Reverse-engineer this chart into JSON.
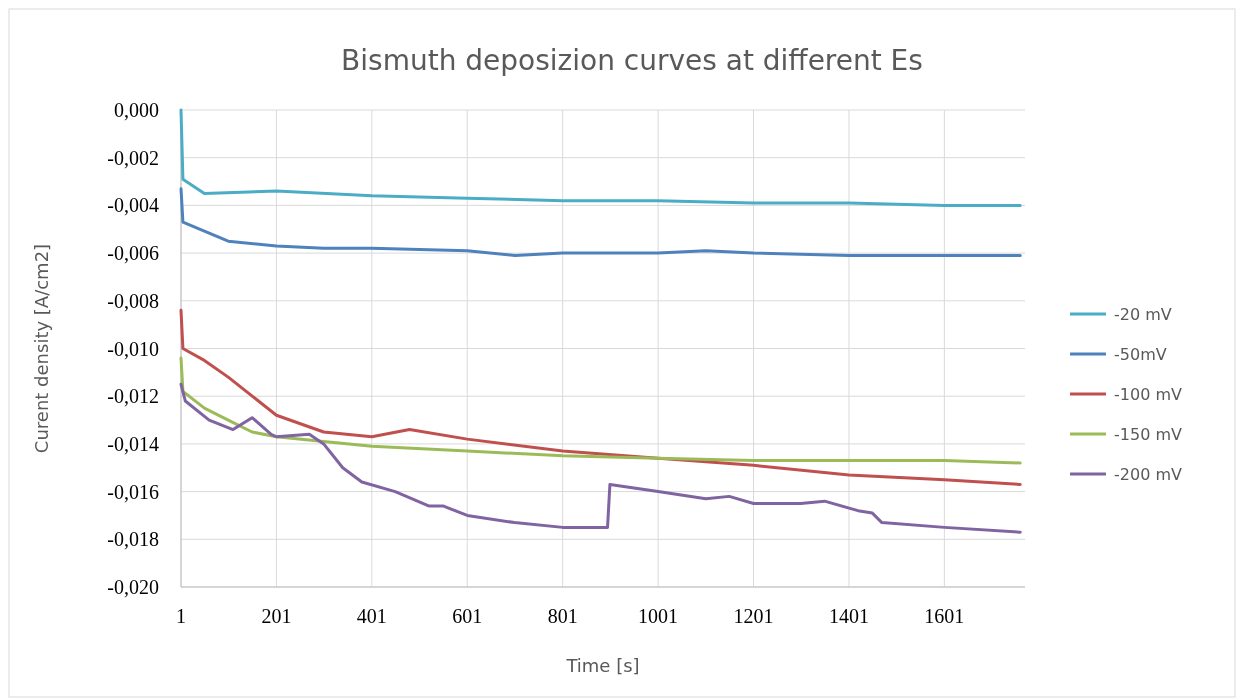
{
  "chart_data": {
    "type": "line",
    "title": "Bismuth deposizion curves at different Es",
    "xlabel": "Time [s]",
    "ylabel": "Curent density [A/cm2]",
    "xlim": [
      1,
      1770
    ],
    "xticks": [
      1,
      201,
      401,
      601,
      801,
      1001,
      1201,
      1401,
      1601
    ],
    "ylim": [
      -0.02,
      0
    ],
    "yticks": [
      {
        "value": 0,
        "label": "0,000"
      },
      {
        "value": -0.002,
        "label": "-0,002"
      },
      {
        "value": -0.004,
        "label": "-0,004"
      },
      {
        "value": -0.006,
        "label": "-0,006"
      },
      {
        "value": -0.008,
        "label": "-0,008"
      },
      {
        "value": -0.01,
        "label": "-0,010"
      },
      {
        "value": -0.012,
        "label": "-0,012"
      },
      {
        "value": -0.014,
        "label": "-0,014"
      },
      {
        "value": -0.016,
        "label": "-0,016"
      },
      {
        "value": -0.018,
        "label": "-0,018"
      },
      {
        "value": -0.02,
        "label": "-0,020"
      }
    ],
    "grid": true,
    "legend": "right",
    "line_style": "solid",
    "marker": "none",
    "series": [
      {
        "name": "-20 mV",
        "color": "#4bacc6",
        "x": [
          1,
          5,
          50,
          201,
          401,
          601,
          801,
          1001,
          1201,
          1401,
          1601,
          1760
        ],
        "values": [
          0,
          -0.0029,
          -0.0035,
          -0.0034,
          -0.0036,
          -0.0037,
          -0.0038,
          -0.0038,
          -0.0039,
          -0.0039,
          -0.004,
          -0.004
        ]
      },
      {
        "name": "-50mV",
        "color": "#4f81bd",
        "x": [
          1,
          5,
          100,
          201,
          300,
          401,
          601,
          701,
          801,
          1001,
          1101,
          1201,
          1401,
          1760
        ],
        "values": [
          -0.0033,
          -0.0047,
          -0.0055,
          -0.0057,
          -0.0058,
          -0.0058,
          -0.0059,
          -0.0061,
          -0.006,
          -0.006,
          -0.0059,
          -0.006,
          -0.0061,
          -0.0061
        ]
      },
      {
        "name": "-100 mV",
        "color": "#c0504d",
        "x": [
          1,
          5,
          50,
          100,
          201,
          300,
          401,
          480,
          601,
          801,
          1001,
          1201,
          1401,
          1601,
          1760
        ],
        "values": [
          -0.0084,
          -0.01,
          -0.0105,
          -0.0112,
          -0.0128,
          -0.0135,
          -0.0137,
          -0.0134,
          -0.0138,
          -0.0143,
          -0.0146,
          -0.0149,
          -0.0153,
          -0.0155,
          -0.0157
        ]
      },
      {
        "name": "-150 mV",
        "color": "#9bbb59",
        "x": [
          1,
          5,
          50,
          100,
          150,
          201,
          300,
          401,
          601,
          801,
          1001,
          1201,
          1401,
          1601,
          1760
        ],
        "values": [
          -0.0104,
          -0.0118,
          -0.0125,
          -0.013,
          -0.0135,
          -0.0137,
          -0.0139,
          -0.0141,
          -0.0143,
          -0.0145,
          -0.0146,
          -0.0147,
          -0.0147,
          -0.0147,
          -0.0148
        ]
      },
      {
        "name": "-200 mV",
        "color": "#8064a2",
        "x": [
          1,
          10,
          60,
          110,
          150,
          190,
          201,
          270,
          300,
          340,
          380,
          450,
          520,
          550,
          601,
          700,
          801,
          895,
          900,
          1001,
          1101,
          1150,
          1201,
          1300,
          1350,
          1420,
          1450,
          1470,
          1601,
          1760
        ],
        "values": [
          -0.0115,
          -0.0122,
          -0.013,
          -0.0134,
          -0.0129,
          -0.0136,
          -0.0137,
          -0.0136,
          -0.014,
          -0.015,
          -0.0156,
          -0.016,
          -0.0166,
          -0.0166,
          -0.017,
          -0.0173,
          -0.0175,
          -0.0175,
          -0.0157,
          -0.016,
          -0.0163,
          -0.0162,
          -0.0165,
          -0.0165,
          -0.0164,
          -0.0168,
          -0.0169,
          -0.0173,
          -0.0175,
          -0.0177
        ]
      }
    ]
  }
}
